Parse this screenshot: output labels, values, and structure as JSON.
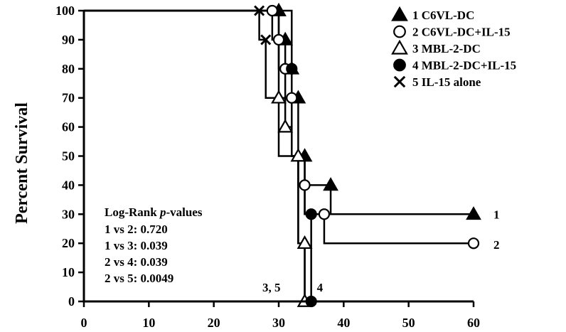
{
  "chart_data": {
    "type": "line",
    "title": "",
    "xlabel": "",
    "ylabel": "Percent Survival",
    "xlim": [
      0,
      60
    ],
    "ylim": [
      0,
      100
    ],
    "xticks": [
      0,
      10,
      20,
      30,
      40,
      50,
      60
    ],
    "yticks": [
      0,
      10,
      20,
      30,
      40,
      50,
      60,
      70,
      80,
      90,
      100
    ],
    "grid": false,
    "legend_position": "top-right",
    "series": [
      {
        "name": "1 C6VL-DC",
        "marker": "filled-triangle",
        "steps": [
          [
            0,
            100
          ],
          [
            30,
            90
          ],
          [
            31,
            80
          ],
          [
            32,
            70
          ],
          [
            33,
            50
          ],
          [
            34,
            40
          ],
          [
            38,
            30
          ],
          [
            60,
            30
          ]
        ],
        "points": [
          [
            30,
            100
          ],
          [
            31,
            90
          ],
          [
            32,
            80
          ],
          [
            33,
            70
          ],
          [
            34,
            50
          ],
          [
            38,
            40
          ],
          [
            60,
            30
          ]
        ]
      },
      {
        "name": "2 C6VL-DC+IL-15",
        "marker": "open-circle",
        "steps": [
          [
            0,
            100
          ],
          [
            29,
            90
          ],
          [
            30,
            80
          ],
          [
            31,
            70
          ],
          [
            32,
            50
          ],
          [
            33,
            40
          ],
          [
            34,
            30
          ],
          [
            37,
            20
          ],
          [
            60,
            20
          ]
        ],
        "points": [
          [
            29,
            100
          ],
          [
            30,
            90
          ],
          [
            31,
            80
          ],
          [
            32,
            70
          ],
          [
            34,
            40
          ],
          [
            37,
            30
          ],
          [
            60,
            20
          ]
        ]
      },
      {
        "name": "3 MBL-2-DC",
        "marker": "open-triangle",
        "steps": [
          [
            0,
            100
          ],
          [
            30,
            70
          ],
          [
            31,
            60
          ],
          [
            32,
            50
          ],
          [
            33,
            20
          ],
          [
            34,
            0
          ]
        ],
        "points": [
          [
            30,
            70
          ],
          [
            31,
            60
          ],
          [
            33,
            50
          ],
          [
            34,
            20
          ],
          [
            34,
            0
          ]
        ]
      },
      {
        "name": "4 MBL-2-DC+IL-15",
        "marker": "filled-circle",
        "steps": [
          [
            0,
            100
          ],
          [
            32,
            50
          ],
          [
            34,
            30
          ],
          [
            35,
            0
          ]
        ],
        "points": [
          [
            32,
            80
          ],
          [
            35,
            30
          ],
          [
            35,
            0
          ]
        ]
      },
      {
        "name": "5 IL-15 alone",
        "marker": "x",
        "steps": [
          [
            0,
            100
          ],
          [
            27,
            90
          ],
          [
            28,
            70
          ],
          [
            30,
            50
          ],
          [
            33,
            20
          ],
          [
            34,
            0
          ]
        ],
        "points": [
          [
            27,
            100
          ],
          [
            28,
            90
          ]
        ]
      }
    ],
    "end_labels": [
      {
        "text": "1",
        "x": 60,
        "y": 30
      },
      {
        "text": "2",
        "x": 60,
        "y": 20
      },
      {
        "text": "3, 5",
        "x": 34,
        "y": 0
      },
      {
        "text": "4",
        "x": 35,
        "y": 0
      }
    ],
    "annotation_title_plain": "Log-Rank ",
    "annotation_title_italic": "p",
    "annotation_title_tail": "-values",
    "annotation_lines": [
      "1 vs 2: 0.720",
      "1 vs 3: 0.039",
      "2 vs 4: 0.039",
      "2 vs 5: 0.0049"
    ]
  }
}
